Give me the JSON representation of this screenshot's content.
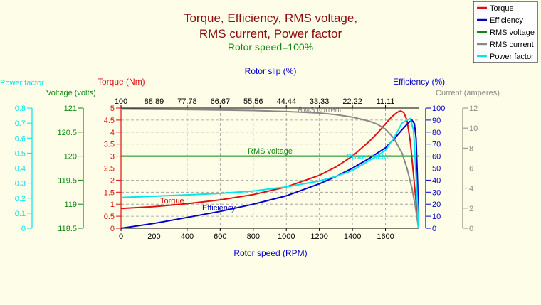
{
  "chart_data": {
    "type": "line",
    "title": "Torque, Efficiency, RMS voltage,",
    "title_line2": "RMS current, Power factor",
    "subtitle": "Rotor speed=100%",
    "xlabel": "Rotor speed (RPM)",
    "x_top_label": "Rotor slip (%)",
    "xlim": [
      0,
      1800
    ],
    "x_ticks": [
      "0",
      "200",
      "400",
      "600",
      "800",
      "1000",
      "1200",
      "1400",
      "1600"
    ],
    "x_top_ticks": [
      "100",
      "88.89",
      "77.78",
      "66.67",
      "55.56",
      "44.44",
      "33.33",
      "22.22",
      "11.11"
    ],
    "grid": true,
    "legend_position": "top-right",
    "axes": {
      "power_factor": {
        "label": "Power factor",
        "range": [
          0,
          0.8
        ],
        "ticks": [
          "0",
          "0.1",
          "0.2",
          "0.3",
          "0.4",
          "0.5",
          "0.6",
          "0.7",
          "0.8"
        ],
        "color": "#00e5ee"
      },
      "voltage": {
        "label": "Voltage (volts)",
        "range": [
          118.5,
          121
        ],
        "ticks": [
          "118.5",
          "119",
          "119.5",
          "120",
          "120.5",
          "121"
        ],
        "color": "#118811"
      },
      "torque": {
        "label": "Torque (Nm)",
        "range": [
          0,
          5
        ],
        "ticks": [
          "0",
          "0.5",
          "1",
          "1.5",
          "2",
          "2.5",
          "3",
          "3.5",
          "4",
          "4.5",
          "5"
        ],
        "color": "#e01010"
      },
      "efficiency": {
        "label": "Efficiency (%)",
        "range": [
          0,
          100
        ],
        "ticks": [
          "0",
          "10",
          "20",
          "30",
          "40",
          "50",
          "60",
          "70",
          "80",
          "90",
          "100"
        ],
        "color": "#0000cc"
      },
      "current": {
        "label": "Current (amperes)",
        "range": [
          0,
          12
        ],
        "ticks": [
          "0",
          "2",
          "4",
          "6",
          "8",
          "10",
          "12"
        ],
        "color": "#888888"
      }
    },
    "series": [
      {
        "name": "Torque",
        "axis": "torque",
        "color": "#e01010",
        "label": "Torque",
        "x": [
          0,
          200,
          400,
          600,
          800,
          1000,
          1200,
          1300,
          1400,
          1500,
          1550,
          1600,
          1640,
          1670,
          1690,
          1710,
          1730,
          1750,
          1770,
          1790,
          1800
        ],
        "y": [
          0.82,
          0.9,
          1.02,
          1.18,
          1.4,
          1.72,
          2.2,
          2.55,
          3.0,
          3.6,
          3.95,
          4.35,
          4.65,
          4.82,
          4.88,
          4.82,
          4.5,
          3.6,
          2.2,
          0.7,
          0
        ]
      },
      {
        "name": "Efficiency",
        "axis": "efficiency",
        "color": "#0000cc",
        "label": "Efficiency",
        "x": [
          0,
          200,
          400,
          600,
          800,
          1000,
          1200,
          1300,
          1400,
          1500,
          1600,
          1650,
          1700,
          1740,
          1760,
          1775,
          1785,
          1795,
          1800
        ],
        "y": [
          0,
          4,
          9,
          14,
          20,
          27,
          37,
          43,
          50,
          58,
          67,
          74,
          82,
          88,
          90,
          87,
          75,
          35,
          0
        ]
      },
      {
        "name": "RMS voltage",
        "axis": "voltage",
        "color": "#118811",
        "label": "RMS voltage",
        "x": [
          0,
          1800
        ],
        "y": [
          120,
          120
        ]
      },
      {
        "name": "RMS current",
        "axis": "current",
        "color": "#888888",
        "label": "RMS current",
        "x": [
          0,
          200,
          400,
          600,
          800,
          1000,
          1200,
          1300,
          1400,
          1500,
          1550,
          1600,
          1650,
          1700,
          1730,
          1760,
          1780,
          1800
        ],
        "y": [
          11.9,
          11.88,
          11.85,
          11.8,
          11.75,
          11.65,
          11.5,
          11.35,
          11.1,
          10.7,
          10.4,
          9.9,
          9.0,
          7.5,
          6.0,
          4.0,
          2.2,
          0
        ]
      },
      {
        "name": "Power factor",
        "axis": "power_factor",
        "color": "#00e5ee",
        "label": "Power factor",
        "x": [
          0,
          200,
          400,
          600,
          800,
          1000,
          1200,
          1300,
          1400,
          1500,
          1550,
          1600,
          1650,
          1700,
          1730,
          1750,
          1770,
          1785,
          1800
        ],
        "y": [
          0.205,
          0.213,
          0.222,
          0.232,
          0.248,
          0.275,
          0.315,
          0.345,
          0.385,
          0.45,
          0.48,
          0.52,
          0.6,
          0.7,
          0.72,
          0.73,
          0.65,
          0.35,
          0
        ]
      }
    ]
  }
}
